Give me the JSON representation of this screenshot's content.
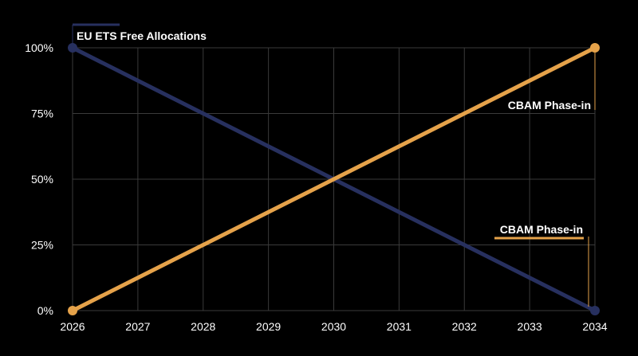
{
  "colors": {
    "background": "#000000",
    "grid": "#3a3a3a",
    "axis_text": "#ffffff",
    "eu_ets": "#27305f",
    "cbam": "#e5a24a"
  },
  "chart_data": {
    "type": "line",
    "title": "",
    "xlabel": "",
    "ylabel": "",
    "x": [
      "2026",
      "2027",
      "2028",
      "2029",
      "2030",
      "2031",
      "2032",
      "2033",
      "2034"
    ],
    "x_values": [
      2026,
      2027,
      2028,
      2029,
      2030,
      2031,
      2032,
      2033,
      2034
    ],
    "y_ticks": [
      0,
      25,
      50,
      75,
      100
    ],
    "y_tick_labels": [
      "0%",
      "25%",
      "50%",
      "75%",
      "100%"
    ],
    "ylim": [
      0,
      100
    ],
    "xlim": [
      2026,
      2034
    ],
    "grid": true,
    "series": [
      {
        "name": "EU ETS Free Allocations",
        "color": "#27305f",
        "values": [
          100,
          87.5,
          75,
          62.5,
          50,
          37.5,
          25,
          12.5,
          0
        ],
        "endpoints_marked": true
      },
      {
        "name": "CBAM Phase-in",
        "color": "#e5a24a",
        "values": [
          0,
          12.5,
          25,
          37.5,
          50,
          62.5,
          75,
          87.5,
          100
        ],
        "endpoints_marked": true
      }
    ],
    "annotations": [
      {
        "text": "EU ETS Free Allocations",
        "series": 0,
        "placement": "top-left"
      },
      {
        "text": "CBAM Phase-in",
        "series": 1,
        "placement": "upper-right"
      },
      {
        "text": "CBAM Phase-in",
        "series": 1,
        "placement": "lower-right"
      }
    ]
  }
}
